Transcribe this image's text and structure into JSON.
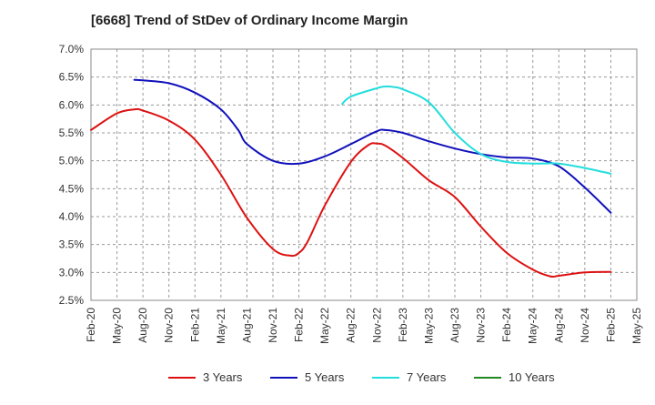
{
  "chart_data": {
    "type": "line",
    "title": "[6668]  Trend of StDev of Ordinary Income Margin",
    "xlabel": "",
    "ylabel": "",
    "x_ticks": [
      "Feb-20",
      "May-20",
      "Aug-20",
      "Nov-20",
      "Feb-21",
      "May-21",
      "Aug-21",
      "Nov-21",
      "Feb-22",
      "May-22",
      "Aug-22",
      "Nov-22",
      "Feb-23",
      "May-23",
      "Aug-23",
      "Nov-23",
      "Feb-24",
      "May-24",
      "Aug-24",
      "Nov-24",
      "Feb-25",
      "May-25"
    ],
    "y_ticks": [
      "7.0%",
      "6.5%",
      "6.0%",
      "5.5%",
      "5.0%",
      "4.5%",
      "4.0%",
      "3.5%",
      "3.0%",
      "2.5%"
    ],
    "ylim": [
      2.5,
      7.0
    ],
    "grid": true,
    "legend_position": "bottom",
    "series": [
      {
        "name": "3 Years",
        "color": "#dd1111",
        "values": [
          [
            "Feb-20",
            5.55
          ],
          [
            "May-20",
            5.85
          ],
          [
            "Jul-20",
            5.92
          ],
          [
            "Aug-20",
            5.9
          ],
          [
            "Nov-20",
            5.72
          ],
          [
            "Feb-21",
            5.38
          ],
          [
            "May-21",
            4.75
          ],
          [
            "Aug-21",
            3.98
          ],
          [
            "Nov-21",
            3.42
          ],
          [
            "Jan-22",
            3.3
          ],
          [
            "Feb-22",
            3.35
          ],
          [
            "Mar-22",
            3.55
          ],
          [
            "May-22",
            4.2
          ],
          [
            "Aug-22",
            4.98
          ],
          [
            "Oct-22",
            5.28
          ],
          [
            "Nov-22",
            5.31
          ],
          [
            "Dec-22",
            5.27
          ],
          [
            "Feb-23",
            5.05
          ],
          [
            "May-23",
            4.65
          ],
          [
            "Aug-23",
            4.35
          ],
          [
            "Nov-23",
            3.82
          ],
          [
            "Feb-24",
            3.35
          ],
          [
            "May-24",
            3.05
          ],
          [
            "Jul-24",
            2.93
          ],
          [
            "Aug-24",
            2.94
          ],
          [
            "Nov-24",
            3.0
          ],
          [
            "Feb-25",
            3.01
          ]
        ]
      },
      {
        "name": "5 Years",
        "color": "#1111bb",
        "values": [
          [
            "Jul-20",
            6.45
          ],
          [
            "Aug-20",
            6.44
          ],
          [
            "Nov-20",
            6.39
          ],
          [
            "Feb-21",
            6.22
          ],
          [
            "May-21",
            5.92
          ],
          [
            "Jul-21",
            5.55
          ],
          [
            "Aug-21",
            5.3
          ],
          [
            "Nov-21",
            5.0
          ],
          [
            "Feb-22",
            4.95
          ],
          [
            "May-22",
            5.08
          ],
          [
            "Aug-22",
            5.3
          ],
          [
            "Nov-22",
            5.53
          ],
          [
            "Dec-22",
            5.55
          ],
          [
            "Feb-23",
            5.5
          ],
          [
            "May-23",
            5.35
          ],
          [
            "Aug-23",
            5.22
          ],
          [
            "Nov-23",
            5.12
          ],
          [
            "Feb-24",
            5.06
          ],
          [
            "May-24",
            5.04
          ],
          [
            "Aug-24",
            4.9
          ],
          [
            "Nov-24",
            4.52
          ],
          [
            "Feb-25",
            4.07
          ]
        ]
      },
      {
        "name": "7 Years",
        "color": "#22dddd",
        "values": [
          [
            "Jul-22",
            6.02
          ],
          [
            "Aug-22",
            6.15
          ],
          [
            "Nov-22",
            6.3
          ],
          [
            "Dec-22",
            6.33
          ],
          [
            "Jan-23",
            6.32
          ],
          [
            "Feb-23",
            6.28
          ],
          [
            "May-23",
            6.05
          ],
          [
            "Aug-23",
            5.5
          ],
          [
            "Nov-23",
            5.12
          ],
          [
            "Feb-24",
            4.98
          ],
          [
            "May-24",
            4.95
          ],
          [
            "Aug-24",
            4.95
          ],
          [
            "Nov-24",
            4.87
          ],
          [
            "Feb-25",
            4.77
          ]
        ]
      },
      {
        "name": "10 Years",
        "color": "#228822",
        "values": []
      }
    ]
  }
}
